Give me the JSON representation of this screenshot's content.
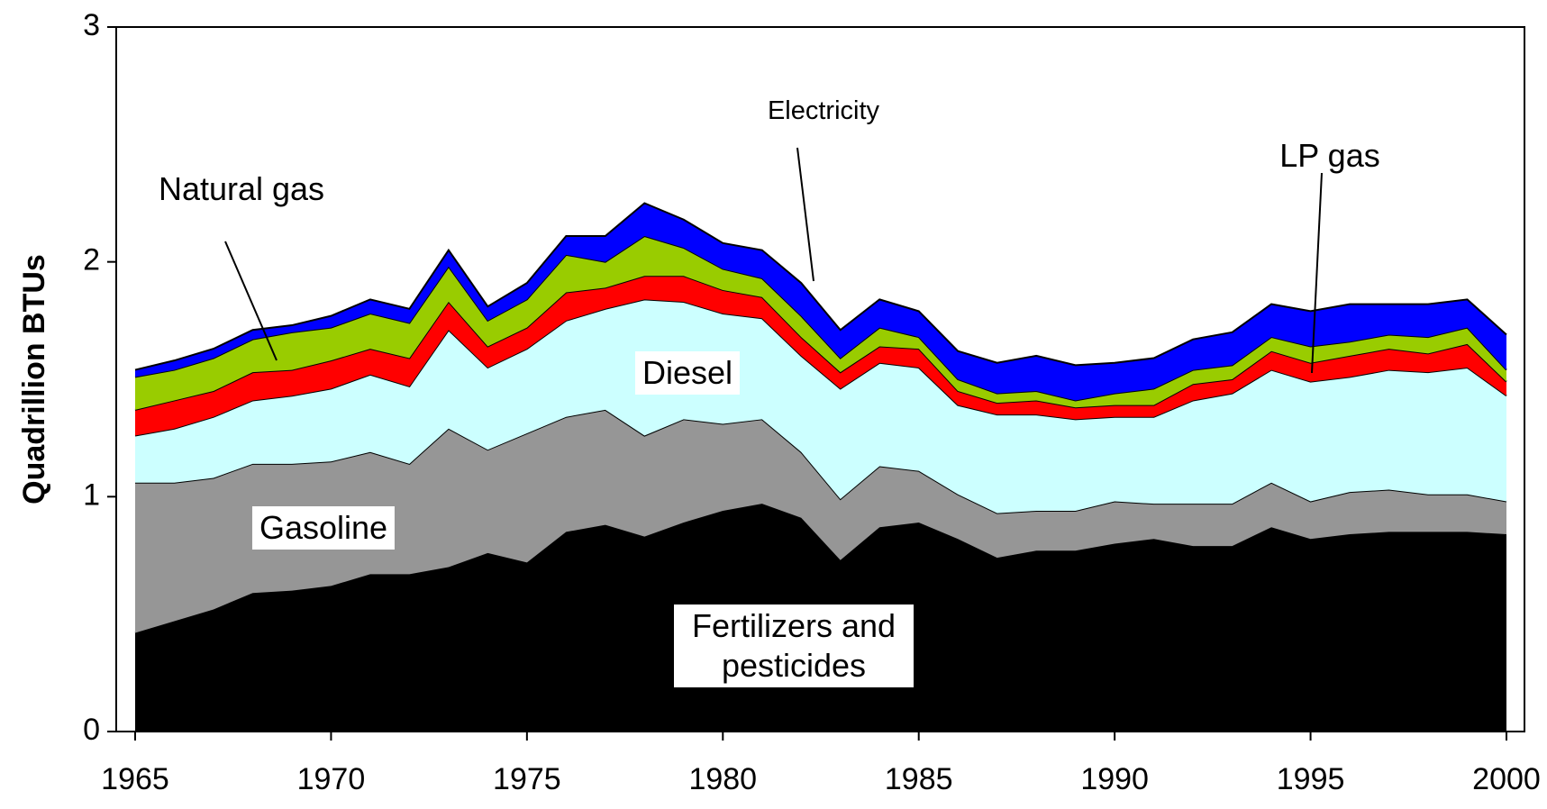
{
  "chart_data": {
    "type": "stacked_area",
    "y_label": "Quadrillion BTUs",
    "x": [
      1965,
      1966,
      1967,
      1968,
      1969,
      1970,
      1971,
      1972,
      1973,
      1974,
      1975,
      1976,
      1977,
      1978,
      1979,
      1980,
      1981,
      1982,
      1983,
      1984,
      1985,
      1986,
      1987,
      1988,
      1989,
      1990,
      1991,
      1992,
      1993,
      1994,
      1995,
      1996,
      1997,
      1998,
      1999,
      2000
    ],
    "xlim": [
      1965,
      2000
    ],
    "xticks": [
      1965,
      1970,
      1975,
      1980,
      1985,
      1990,
      1995,
      2000
    ],
    "ylim": [
      0,
      3
    ],
    "yticks": [
      0,
      1,
      2,
      3
    ],
    "series": [
      {
        "name": "Fertilizers and pesticides",
        "color": "#000000",
        "values": [
          0.42,
          0.47,
          0.52,
          0.59,
          0.6,
          0.62,
          0.67,
          0.67,
          0.7,
          0.76,
          0.72,
          0.85,
          0.88,
          0.83,
          0.89,
          0.94,
          0.97,
          0.91,
          0.73,
          0.87,
          0.89,
          0.82,
          0.74,
          0.77,
          0.77,
          0.8,
          0.82,
          0.79,
          0.79,
          0.87,
          0.82,
          0.84,
          0.85,
          0.85,
          0.85,
          0.84
        ]
      },
      {
        "name": "Gasoline",
        "color": "#969696",
        "values": [
          0.64,
          0.59,
          0.56,
          0.55,
          0.54,
          0.53,
          0.52,
          0.47,
          0.59,
          0.44,
          0.55,
          0.49,
          0.49,
          0.43,
          0.44,
          0.37,
          0.36,
          0.28,
          0.26,
          0.26,
          0.22,
          0.19,
          0.19,
          0.17,
          0.17,
          0.18,
          0.15,
          0.18,
          0.18,
          0.19,
          0.16,
          0.18,
          0.18,
          0.16,
          0.16,
          0.14
        ]
      },
      {
        "name": "Diesel",
        "color": "#ccffff",
        "values": [
          0.2,
          0.23,
          0.26,
          0.27,
          0.29,
          0.31,
          0.33,
          0.33,
          0.42,
          0.35,
          0.36,
          0.41,
          0.43,
          0.58,
          0.5,
          0.47,
          0.43,
          0.41,
          0.47,
          0.44,
          0.44,
          0.38,
          0.42,
          0.41,
          0.39,
          0.36,
          0.37,
          0.44,
          0.47,
          0.48,
          0.51,
          0.49,
          0.51,
          0.52,
          0.54,
          0.45
        ]
      },
      {
        "name": "LP gas",
        "color": "#ff0000",
        "values": [
          0.11,
          0.12,
          0.11,
          0.12,
          0.11,
          0.12,
          0.11,
          0.12,
          0.12,
          0.09,
          0.09,
          0.12,
          0.09,
          0.1,
          0.11,
          0.1,
          0.09,
          0.08,
          0.07,
          0.07,
          0.08,
          0.06,
          0.05,
          0.06,
          0.05,
          0.05,
          0.05,
          0.07,
          0.06,
          0.08,
          0.08,
          0.09,
          0.09,
          0.08,
          0.1,
          0.06
        ]
      },
      {
        "name": "Natural gas",
        "color": "#99cc00",
        "values": [
          0.14,
          0.13,
          0.14,
          0.14,
          0.16,
          0.14,
          0.15,
          0.15,
          0.15,
          0.11,
          0.12,
          0.16,
          0.11,
          0.17,
          0.12,
          0.09,
          0.08,
          0.09,
          0.06,
          0.08,
          0.05,
          0.05,
          0.04,
          0.04,
          0.03,
          0.05,
          0.07,
          0.06,
          0.06,
          0.06,
          0.07,
          0.06,
          0.06,
          0.07,
          0.07,
          0.05
        ]
      },
      {
        "name": "Electricity",
        "color": "#0000ff",
        "values": [
          0.03,
          0.04,
          0.04,
          0.04,
          0.03,
          0.05,
          0.06,
          0.06,
          0.07,
          0.06,
          0.07,
          0.08,
          0.11,
          0.14,
          0.12,
          0.11,
          0.12,
          0.14,
          0.12,
          0.12,
          0.11,
          0.12,
          0.13,
          0.15,
          0.15,
          0.13,
          0.13,
          0.13,
          0.14,
          0.14,
          0.15,
          0.16,
          0.13,
          0.14,
          0.12,
          0.15
        ]
      }
    ]
  }
}
